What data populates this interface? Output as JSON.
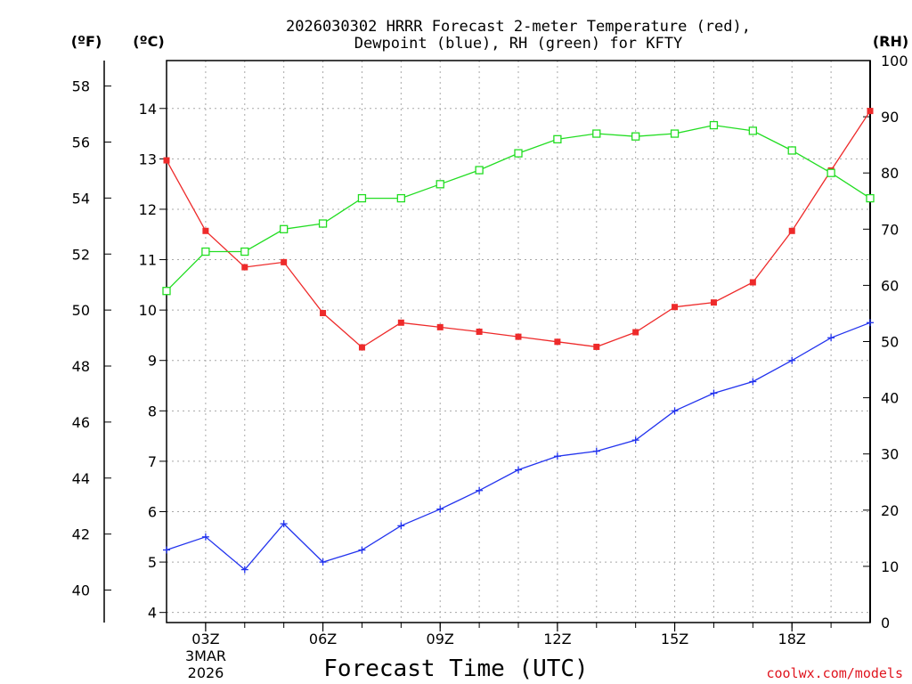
{
  "chart_data": {
    "type": "line",
    "title_line1": "2026030302 HRRR Forecast 2-meter Temperature (red),",
    "title_line2": "Dewpoint (blue), RH (green) for KFTY",
    "xlabel": "Forecast Time (UTC)",
    "x_ticks": [
      "03Z",
      "06Z",
      "09Z",
      "12Z",
      "15Z",
      "18Z"
    ],
    "date_label_1": "3MAR",
    "date_label_2": "2026",
    "unit_f": "(ºF)",
    "unit_c": "(ºC)",
    "unit_rh": "(RH)",
    "credit": "coolwx.com/models",
    "hours": [
      2,
      3,
      4,
      5,
      6,
      7,
      8,
      9,
      10,
      11,
      12,
      13,
      14,
      15,
      16,
      17,
      18,
      19,
      20
    ],
    "celsius_ticks": [
      "4",
      "5",
      "6",
      "7",
      "8",
      "9",
      "10",
      "11",
      "12",
      "13",
      "14"
    ],
    "celsius_range": [
      3.8,
      14.95
    ],
    "fahrenheit_ticks": [
      "40",
      "42",
      "44",
      "46",
      "48",
      "50",
      "52",
      "54",
      "56",
      "58"
    ],
    "rh_ticks": [
      "0",
      "10",
      "20",
      "30",
      "40",
      "50",
      "60",
      "70",
      "80",
      "90",
      "100"
    ],
    "rh_range": [
      0,
      100
    ],
    "series": [
      {
        "name": "Temperature (°C)",
        "color": "#ee2a2a",
        "axis": "celsius",
        "marker": "filled-square",
        "values": [
          12.97,
          11.57,
          10.85,
          10.95,
          9.94,
          9.26,
          9.75,
          9.66,
          9.57,
          9.47,
          9.37,
          9.27,
          9.56,
          10.06,
          10.15,
          10.55,
          11.57,
          12.77,
          13.95
        ]
      },
      {
        "name": "Dewpoint (°C)",
        "color": "#2233ee",
        "axis": "celsius",
        "marker": "plus",
        "values": [
          5.24,
          5.5,
          4.85,
          5.76,
          5.0,
          5.24,
          5.72,
          6.05,
          6.42,
          6.83,
          7.1,
          7.2,
          7.42,
          8.0,
          8.35,
          8.58,
          9.0,
          9.45,
          9.75
        ]
      },
      {
        "name": "RH (%)",
        "color": "#22dd22",
        "axis": "rh",
        "marker": "open-square",
        "values": [
          59,
          66,
          66,
          70,
          71,
          75.5,
          75.5,
          78,
          80.5,
          83.5,
          86,
          87,
          86.5,
          87,
          88.5,
          87.5,
          84,
          80,
          75.5
        ]
      }
    ]
  }
}
